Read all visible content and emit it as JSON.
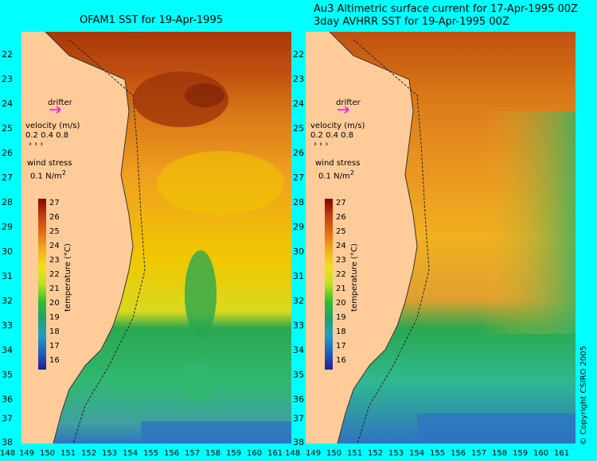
{
  "titles": {
    "left": "OFAM1 SST for 19-Apr-1995",
    "right_line1": "Au3 Altimetric surface current for 17-Apr-1995 00Z",
    "right_line2": "3day AVHRR SST for 19-Apr-1995 00Z"
  },
  "latitudes": [
    "22",
    "23",
    "24",
    "25",
    "26",
    "27",
    "28",
    "29",
    "30",
    "31",
    "32",
    "33",
    "34",
    "35",
    "36",
    "37",
    "38"
  ],
  "longitudes": [
    "148",
    "149",
    "150",
    "151",
    "152",
    "153",
    "154",
    "155",
    "156",
    "157",
    "158",
    "159",
    "160",
    "161"
  ],
  "legend": {
    "drifter": "drifter",
    "velocity_title": "velocity (m/s)",
    "velocity_values": "0.2 0.4 0.8",
    "wind_title": "wind stress",
    "wind_value": "0.1 N/m",
    "wind_exp": "2",
    "temp_label": "temperature (°C)",
    "temp_ticks": [
      "27",
      "26",
      "25",
      "24",
      "23",
      "22",
      "21",
      "20",
      "19",
      "18",
      "17",
      "16"
    ]
  },
  "colors": {
    "background": "#00ffff",
    "land": "#ffcc99",
    "warm": "#c05010",
    "mid": "#f0c800",
    "cool": "#2aa850",
    "cold": "#2f74c0"
  },
  "copyright": "© Copyright CSIRO 2005"
}
